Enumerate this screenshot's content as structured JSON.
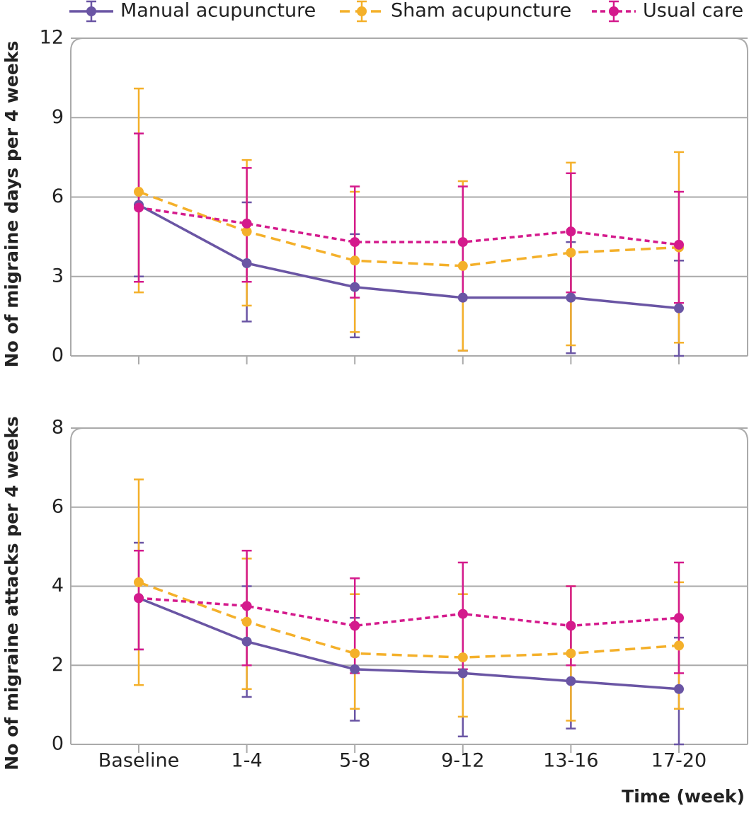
{
  "chart_data": [
    {
      "type": "line",
      "ylabel": "No of migraine days per 4 weeks",
      "ylim": [
        0,
        12
      ],
      "yticks": [
        0,
        3,
        6,
        9,
        12
      ],
      "grid": true,
      "legend": "top",
      "series": [
        {
          "name": "Manual acupuncture",
          "color": "#6a55a4",
          "dash": "solid",
          "values": [
            5.7,
            3.5,
            2.6,
            2.2,
            2.2,
            1.8
          ],
          "lower": [
            3.0,
            1.3,
            0.7,
            0.2,
            0.1,
            0.0
          ],
          "upper": [
            8.4,
            5.8,
            4.6,
            4.3,
            4.3,
            3.6
          ]
        },
        {
          "name": "Sham acupuncture",
          "color": "#f4b02a",
          "dash": "dashed",
          "values": [
            6.2,
            4.7,
            3.6,
            3.4,
            3.9,
            4.1
          ],
          "lower": [
            2.4,
            1.9,
            0.9,
            0.2,
            0.4,
            0.5
          ],
          "upper": [
            10.1,
            7.4,
            6.2,
            6.6,
            7.3,
            7.7
          ]
        },
        {
          "name": "Usual care",
          "color": "#d41a8c",
          "dash": "dotted",
          "values": [
            5.6,
            5.0,
            4.3,
            4.3,
            4.7,
            4.2
          ],
          "lower": [
            2.8,
            2.8,
            2.2,
            2.2,
            2.4,
            2.0
          ],
          "upper": [
            8.4,
            7.1,
            6.4,
            6.4,
            6.9,
            6.2
          ]
        }
      ]
    },
    {
      "type": "line",
      "ylabel": "No of migraine attacks per 4 weeks",
      "xlabel": "Time (week)",
      "ylim": [
        0,
        8
      ],
      "yticks": [
        0,
        2,
        4,
        6,
        8
      ],
      "grid": true,
      "categories": [
        "Baseline",
        "1-4",
        "5-8",
        "9-12",
        "13-16",
        "17-20"
      ],
      "series": [
        {
          "color": "#6a55a4",
          "dash": "solid",
          "values": [
            3.7,
            2.6,
            1.9,
            1.8,
            1.6,
            1.4
          ],
          "lower": [
            2.4,
            1.2,
            0.6,
            0.2,
            0.4,
            0.0
          ],
          "upper": [
            5.1,
            4.0,
            3.2,
            3.3,
            3.0,
            2.7
          ]
        },
        {
          "color": "#f4b02a",
          "dash": "dashed",
          "values": [
            4.1,
            3.1,
            2.3,
            2.2,
            2.3,
            2.5
          ],
          "lower": [
            1.5,
            1.4,
            0.9,
            0.7,
            0.6,
            0.9
          ],
          "upper": [
            6.7,
            4.7,
            3.8,
            3.8,
            4.0,
            4.1
          ]
        },
        {
          "color": "#d41a8c",
          "dash": "dotted",
          "values": [
            3.7,
            3.5,
            3.0,
            3.3,
            3.0,
            3.2
          ],
          "lower": [
            2.4,
            2.0,
            1.8,
            1.9,
            2.0,
            1.8
          ],
          "upper": [
            4.9,
            4.9,
            4.2,
            4.6,
            4.0,
            4.6
          ]
        }
      ]
    }
  ]
}
